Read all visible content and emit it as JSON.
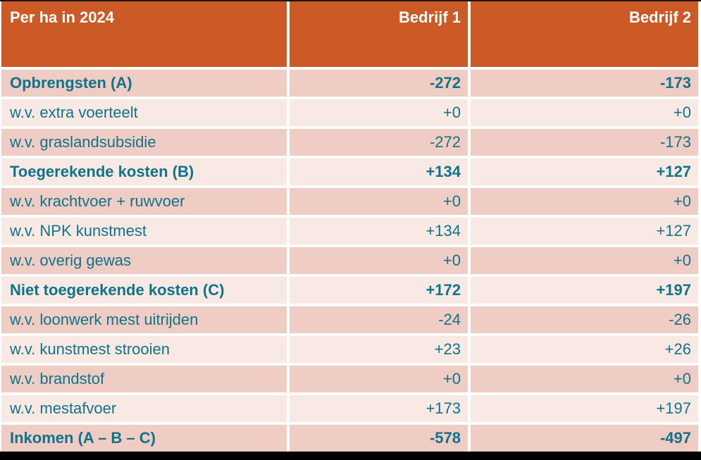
{
  "table": {
    "header": {
      "col1": "Per ha in 2024",
      "col2": "Bedrijf 1",
      "col3": "Bedrijf 2"
    },
    "rows": [
      {
        "label": "Opbrengsten (A)",
        "bedrijf1": "-272",
        "bedrijf2": "-173",
        "bold": true
      },
      {
        "label": "w.v. extra voerteelt",
        "bedrijf1": "+0",
        "bedrijf2": "+0",
        "bold": false
      },
      {
        "label": "w.v. graslandsubsidie",
        "bedrijf1": "-272",
        "bedrijf2": "-173",
        "bold": false
      },
      {
        "label": "Toegerekende kosten (B)",
        "bedrijf1": "+134",
        "bedrijf2": "+127",
        "bold": true
      },
      {
        "label": "w.v. krachtvoer + ruwvoer",
        "bedrijf1": "+0",
        "bedrijf2": "+0",
        "bold": false
      },
      {
        "label": "w.v. NPK kunstmest",
        "bedrijf1": "+134",
        "bedrijf2": "+127",
        "bold": false
      },
      {
        "label": "w.v. overig gewas",
        "bedrijf1": "+0",
        "bedrijf2": "+0",
        "bold": false
      },
      {
        "label": "Niet toegerekende kosten (C)",
        "bedrijf1": "+172",
        "bedrijf2": "+197",
        "bold": true
      },
      {
        "label": "w.v. loonwerk mest uitrijden",
        "bedrijf1": "-24",
        "bedrijf2": "-26",
        "bold": false
      },
      {
        "label": "w.v. kunstmest strooien",
        "bedrijf1": "+23",
        "bedrijf2": "+26",
        "bold": false
      },
      {
        "label": "w.v. brandstof",
        "bedrijf1": "+0",
        "bedrijf2": "+0",
        "bold": false
      },
      {
        "label": "w.v. mestafvoer",
        "bedrijf1": "+173",
        "bedrijf2": "+197",
        "bold": false
      },
      {
        "label": "Inkomen (A – B – C)",
        "bedrijf1": "-578",
        "bedrijf2": "-497",
        "bold": true
      }
    ]
  },
  "colors": {
    "header_bg": "#cc5a27",
    "header_text": "#ffffff",
    "row_dark": "#efcdc5",
    "row_light": "#f9e9e5",
    "text_teal": "#107389",
    "bottom_bar": "#000000",
    "top_line": "#1c1208",
    "page_bg": "#ffffff"
  }
}
